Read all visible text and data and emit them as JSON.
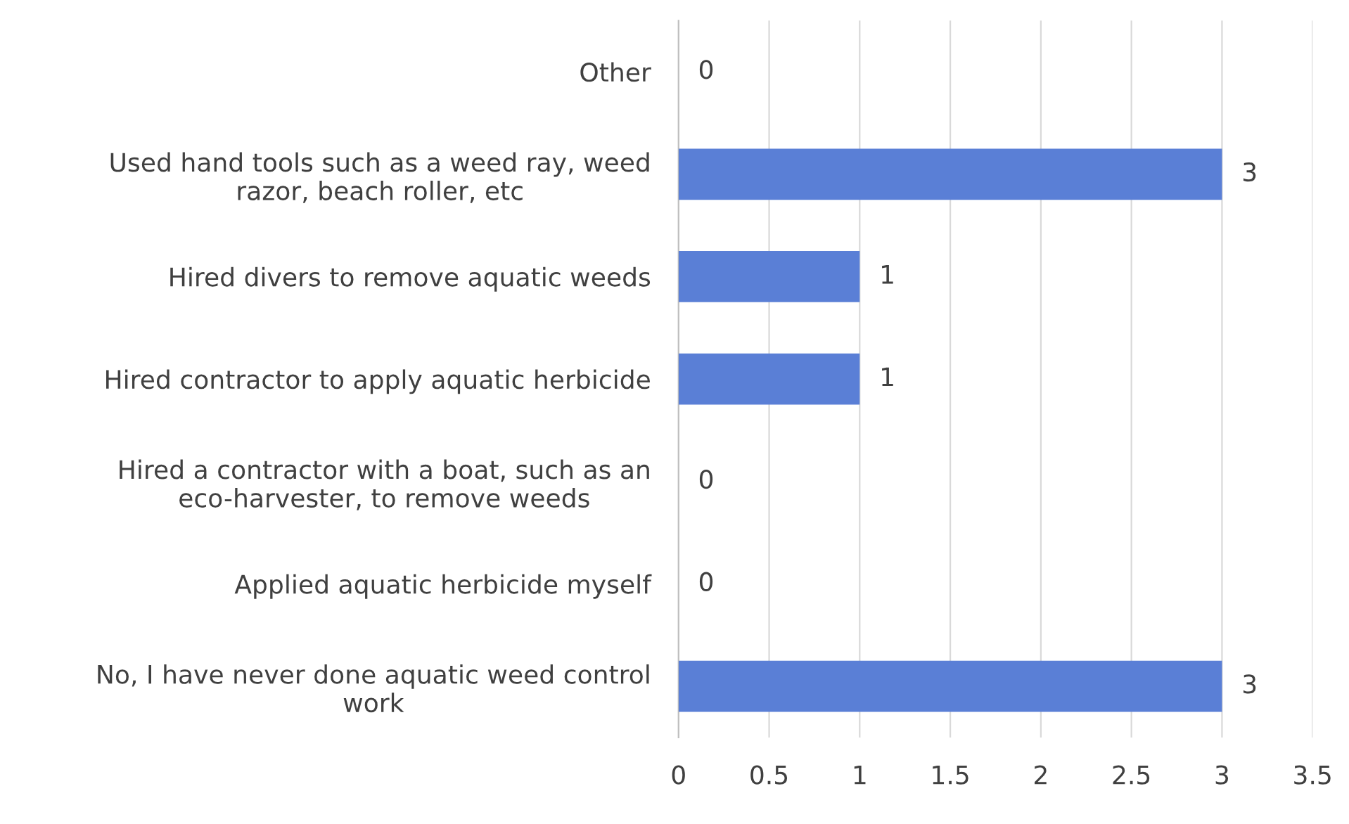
{
  "chart_data": {
    "type": "bar",
    "orientation": "horizontal",
    "categories": [
      "Other",
      "Used hand tools such as a weed ray, weed razor, beach roller, etc",
      "Hired divers to remove aquatic weeds",
      "Hired contractor to apply aquatic herbicide",
      "Hired a contractor with a boat, such as an eco-harvester, to remove weeds",
      "Applied aquatic herbicide myself",
      "No, I have never done aquatic weed control work"
    ],
    "values": [
      0,
      3,
      1,
      1,
      0,
      0,
      3
    ],
    "color": "#5a7fd6",
    "xlim": [
      0,
      3.5
    ],
    "xticks": [
      0,
      0.5,
      1,
      1.5,
      2,
      2.5,
      3,
      3.5
    ],
    "grid": "x",
    "data_labels": true,
    "legend": false
  }
}
